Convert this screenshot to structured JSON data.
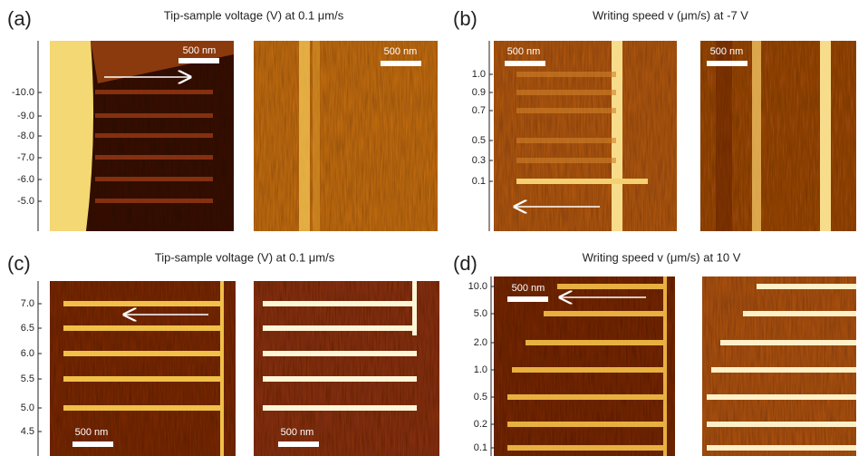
{
  "panels": [
    {
      "label": "(a)",
      "title": "Tip-sample voltage (V)  at 0.1 μm/s",
      "axis_labels": [
        "-10.0",
        "-9.0",
        "-8.0",
        "-7.0",
        "-6.0",
        "-5.0"
      ],
      "scale_bars": [
        "500 nm",
        "500 nm"
      ]
    },
    {
      "label": "(b)",
      "title": "Writing speed v (μm/s) at -7 V",
      "axis_labels": [
        "1.0",
        "0.9",
        "0.7",
        "0.5",
        "0.3",
        "0.1"
      ],
      "scale_bars": [
        "500 nm",
        "500 nm"
      ]
    },
    {
      "label": "(c)",
      "title": "Tip-sample voltage (V)  at 0.1 μm/s",
      "axis_labels": [
        "7.0",
        "6.5",
        "6.0",
        "5.5",
        "5.0",
        "4.5"
      ],
      "scale_bars": [
        "500 nm",
        "500 nm"
      ]
    },
    {
      "label": "(d)",
      "title": "Writing speed v (μm/s) at 10 V",
      "axis_labels": [
        "10.0",
        "5.0",
        "2.0",
        "1.0",
        "0.5",
        "0.2",
        "0.1"
      ],
      "scale_bars": [
        "500 nm"
      ]
    }
  ]
}
